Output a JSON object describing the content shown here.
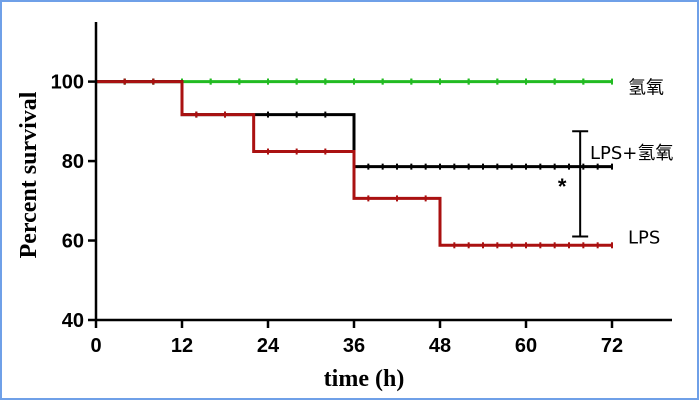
{
  "chart_data": {
    "type": "line",
    "step": true,
    "xlabel": "time (h)",
    "ylabel": "Percent survival",
    "xlim": [
      0,
      72
    ],
    "ylim": [
      40,
      115
    ],
    "xticks": [
      0,
      12,
      24,
      36,
      48,
      60,
      72
    ],
    "yticks": [
      40,
      60,
      80,
      100
    ],
    "grid": false,
    "series": [
      {
        "name": "氢氧",
        "color": "#22bb22",
        "x": [
          0,
          72
        ],
        "y": [
          100,
          100
        ]
      },
      {
        "name": "LPS+氢氧",
        "color": "#000000",
        "x": [
          0,
          12,
          22,
          36,
          72
        ],
        "y": [
          100,
          91.7,
          91.7,
          78.6,
          78.6
        ]
      },
      {
        "name": "LPS",
        "color": "#aa1111",
        "x": [
          0,
          12,
          22,
          36,
          48,
          72
        ],
        "y": [
          100,
          91.7,
          82.4,
          70.6,
          58.8,
          58.8
        ]
      }
    ],
    "annotation": {
      "text": "*",
      "x": 67,
      "y_range": [
        61,
        87.5
      ]
    }
  }
}
